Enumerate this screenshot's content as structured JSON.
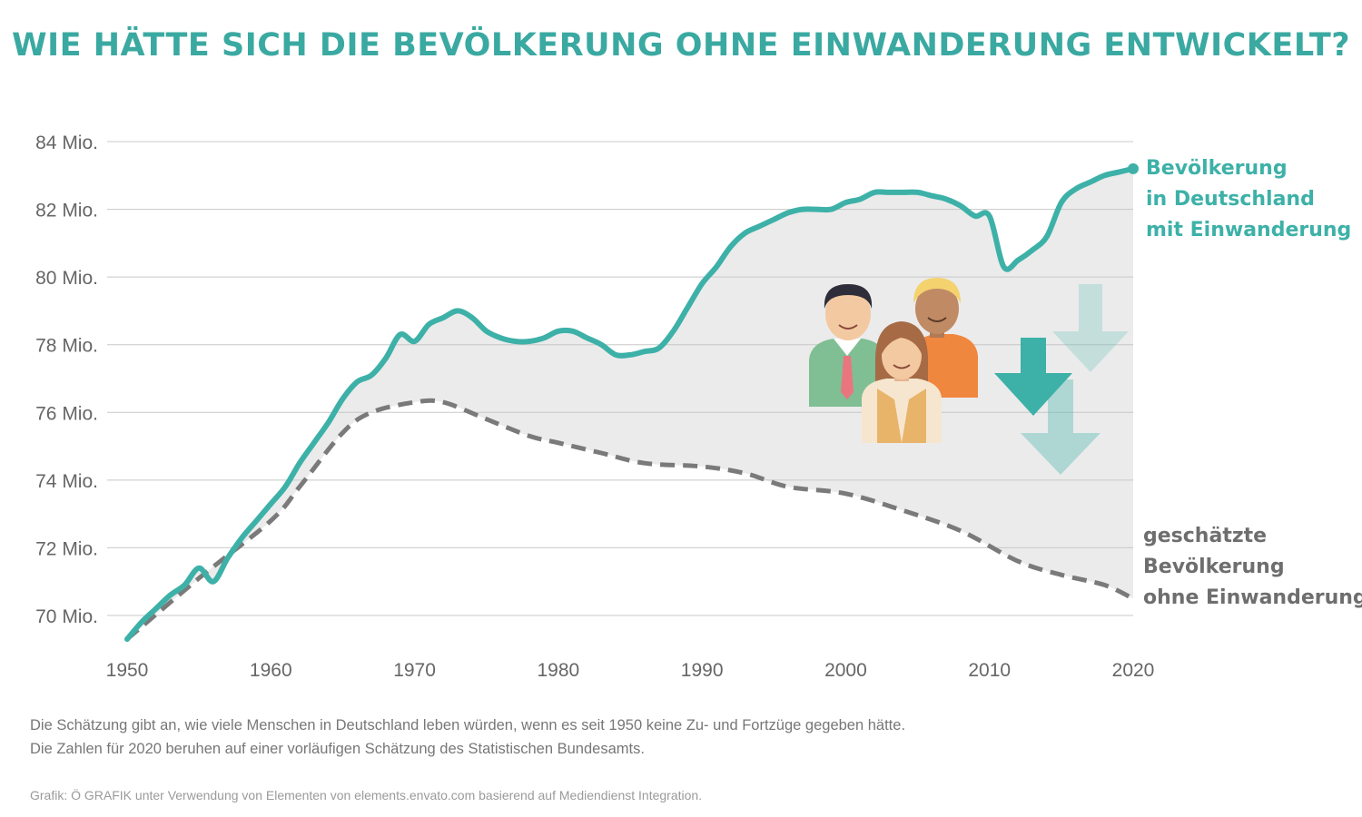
{
  "colors": {
    "title": "#3aa9a1",
    "series_with": "#3db1a8",
    "series_without": "#7a7a7a",
    "area_fill": "#ebebeb",
    "grid": "#c8c8c8",
    "label_without": "#6e6e6e"
  },
  "title": "WIE HÄTTE SICH DIE BEVÖLKERUNG OHNE EINWANDERUNG ENTWICKELT?",
  "notes": [
    "Die Schätzung gibt an, wie viele Menschen in Deutschland leben würden, wenn es seit 1950 keine Zu- und Fortzüge gegeben hätte.",
    "Die Zahlen für 2020 beruhen auf einer vorläufigen Schätzung des Statistischen Bundesamts."
  ],
  "credit": "Grafik: Ö GRAFIK unter Verwendung von Elementen von elements.envato.com basierend auf Mediendienst Integration.",
  "illustration": {
    "icons": [
      "people-group-icon",
      "arrow-down-icon"
    ]
  },
  "chart_data": {
    "type": "line",
    "xlim": [
      1950,
      2020
    ],
    "ylim": [
      69,
      84
    ],
    "x_ticks": [
      1950,
      1960,
      1970,
      1980,
      1990,
      2000,
      2010,
      2020
    ],
    "x_tick_labels": [
      "1950",
      "1960",
      "1970",
      "1980",
      "1990",
      "2000",
      "2010",
      "2020"
    ],
    "y_ticks": [
      70,
      72,
      74,
      76,
      78,
      80,
      82,
      84
    ],
    "y_tick_labels": [
      "70 Mio.",
      "72 Mio.",
      "74 Mio.",
      "76 Mio.",
      "78 Mio.",
      "80 Mio.",
      "82 Mio.",
      "84 Mio."
    ],
    "grid": "horizontal",
    "area_between_series": true,
    "series": [
      {
        "label_lines": [
          "Bevölkerung",
          "in Deutschland",
          "mit Einwanderung"
        ],
        "style": "solid",
        "x": [
          1950,
          1951,
          1952,
          1953,
          1954,
          1955,
          1956,
          1957,
          1958,
          1959,
          1960,
          1961,
          1962,
          1963,
          1964,
          1965,
          1966,
          1967,
          1968,
          1969,
          1970,
          1971,
          1972,
          1973,
          1974,
          1975,
          1976,
          1977,
          1978,
          1979,
          1980,
          1981,
          1982,
          1983,
          1984,
          1985,
          1986,
          1987,
          1988,
          1989,
          1990,
          1991,
          1992,
          1993,
          1994,
          1995,
          1996,
          1997,
          1998,
          1999,
          2000,
          2001,
          2002,
          2003,
          2004,
          2005,
          2006,
          2007,
          2008,
          2009,
          2010,
          2011,
          2012,
          2013,
          2014,
          2015,
          2016,
          2017,
          2018,
          2019,
          2020
        ],
        "values": [
          69.3,
          69.8,
          70.2,
          70.6,
          70.9,
          71.4,
          71.0,
          71.7,
          72.3,
          72.8,
          73.3,
          73.8,
          74.5,
          75.1,
          75.7,
          76.4,
          76.9,
          77.1,
          77.6,
          78.3,
          78.1,
          78.6,
          78.8,
          79.0,
          78.8,
          78.4,
          78.2,
          78.1,
          78.1,
          78.2,
          78.4,
          78.4,
          78.2,
          78.0,
          77.7,
          77.7,
          77.8,
          77.9,
          78.4,
          79.1,
          79.8,
          80.3,
          80.9,
          81.3,
          81.5,
          81.7,
          81.9,
          82.0,
          82.0,
          82.0,
          82.2,
          82.3,
          82.5,
          82.5,
          82.5,
          82.5,
          82.4,
          82.3,
          82.1,
          81.8,
          81.8,
          80.3,
          80.5,
          80.8,
          81.2,
          82.2,
          82.6,
          82.8,
          83.0,
          83.1,
          83.2
        ]
      },
      {
        "label_lines": [
          "geschätzte",
          "Bevölkerung",
          "ohne Einwanderung"
        ],
        "style": "dashed",
        "x": [
          1950,
          1955,
          1960,
          1962,
          1965,
          1967,
          1970,
          1972,
          1975,
          1978,
          1980,
          1983,
          1986,
          1990,
          1993,
          1996,
          2000,
          2004,
          2008,
          2012,
          2015,
          2018,
          2020
        ],
        "values": [
          69.3,
          71.1,
          72.8,
          73.8,
          75.4,
          76.0,
          76.3,
          76.3,
          75.8,
          75.3,
          75.1,
          74.8,
          74.5,
          74.4,
          74.2,
          73.8,
          73.6,
          73.1,
          72.5,
          71.6,
          71.2,
          70.9,
          70.5
        ]
      }
    ]
  }
}
